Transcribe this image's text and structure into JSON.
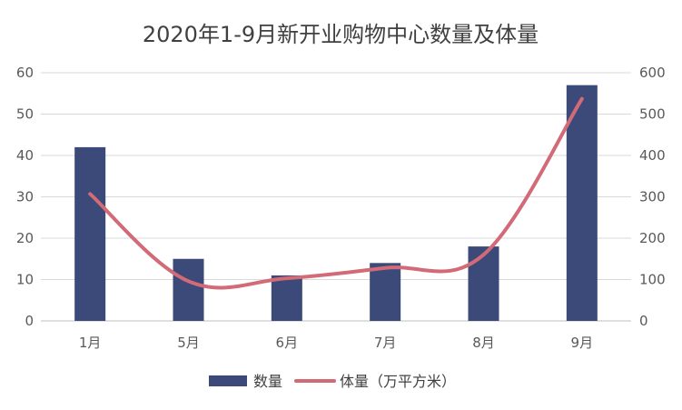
{
  "chart_data": {
    "type": "bar",
    "title": "2020年1-9月新开业购物中心数量及体量",
    "categories": [
      "1月",
      "5月",
      "6月",
      "7月",
      "8月",
      "9月"
    ],
    "series": [
      {
        "name": "数量",
        "type": "bar",
        "axis": "left",
        "color": "#3B4A78",
        "values": [
          42,
          15,
          11,
          14,
          18,
          57
        ]
      },
      {
        "name": "体量（万平方米）",
        "type": "line",
        "axis": "right",
        "color": "#D26A77",
        "values": [
          307,
          96,
          103,
          128,
          160,
          537
        ]
      }
    ],
    "ylim_left": [
      0,
      60
    ],
    "ylim_right": [
      0,
      600
    ],
    "yticks_left": [
      "0",
      "10",
      "20",
      "30",
      "40",
      "50",
      "60"
    ],
    "yticks_right": [
      "0",
      "100",
      "200",
      "300",
      "400",
      "500",
      "600"
    ],
    "grid": true,
    "legend_position": "bottom"
  }
}
